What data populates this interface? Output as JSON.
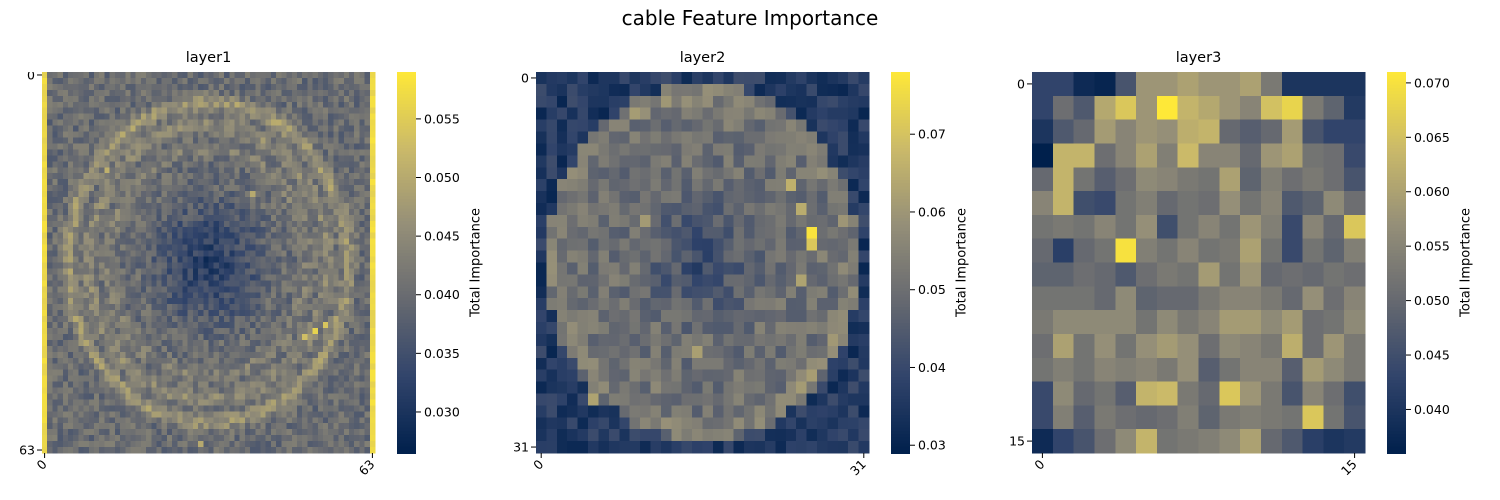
{
  "figure": {
    "title": "cable Feature Importance"
  },
  "colormap": {
    "name": "cividis",
    "stops": [
      "#00204c",
      "#31446b",
      "#666970",
      "#958f78",
      "#cbba69",
      "#fee838"
    ]
  },
  "chart_data": [
    {
      "type": "heatmap",
      "title": "layer1",
      "grid_size": 64,
      "x_ticks": [
        "0",
        "63"
      ],
      "y_ticks": [
        "0",
        "63"
      ],
      "colorbar": {
        "label": "Total Importance",
        "vmin": 0.0265,
        "vmax": 0.059,
        "ticks": [
          "0.030",
          "0.035",
          "0.040",
          "0.045",
          "0.050",
          "0.055"
        ],
        "tick_values": [
          0.03,
          0.035,
          0.04,
          0.045,
          0.05,
          0.055
        ]
      },
      "pattern": {
        "edge_columns_value": 0.057,
        "rings": [
          {
            "radius": 0.42,
            "value": 0.049
          },
          {
            "radius": 0.36,
            "value": 0.046
          },
          {
            "radius": 0.3,
            "value": 0.044
          }
        ],
        "base_value": 0.04,
        "center_value": 0.031,
        "hotspots": [
          {
            "row": 43,
            "col": 52,
            "value": 0.056
          },
          {
            "row": 42,
            "col": 54,
            "value": 0.054
          },
          {
            "row": 44,
            "col": 50,
            "value": 0.053
          },
          {
            "row": 16,
            "col": 12,
            "value": 0.051
          },
          {
            "row": 20,
            "col": 40,
            "value": 0.05
          },
          {
            "row": 62,
            "col": 30,
            "value": 0.05
          }
        ]
      }
    },
    {
      "type": "heatmap",
      "title": "layer2",
      "grid_size": 32,
      "x_ticks": [
        "0",
        "31"
      ],
      "y_ticks": [
        "0",
        "31"
      ],
      "colorbar": {
        "label": "Total Importance",
        "vmin": 0.029,
        "vmax": 0.078,
        "ticks": [
          "0.03",
          "0.04",
          "0.05",
          "0.06",
          "0.07"
        ],
        "tick_values": [
          0.03,
          0.04,
          0.05,
          0.06,
          0.07
        ]
      },
      "pattern": {
        "outer_value": 0.036,
        "rings": [
          {
            "radius": 0.44,
            "value": 0.058
          },
          {
            "radius": 0.36,
            "value": 0.052
          }
        ],
        "base_value": 0.05,
        "center_value": 0.04,
        "hotspots": [
          {
            "row": 13,
            "col": 26,
            "value": 0.077
          },
          {
            "row": 14,
            "col": 26,
            "value": 0.071
          },
          {
            "row": 9,
            "col": 24,
            "value": 0.066
          },
          {
            "row": 11,
            "col": 25,
            "value": 0.065
          },
          {
            "row": 17,
            "col": 25,
            "value": 0.063
          },
          {
            "row": 12,
            "col": 10,
            "value": 0.061
          },
          {
            "row": 23,
            "col": 15,
            "value": 0.062
          },
          {
            "row": 27,
            "col": 5,
            "value": 0.063
          }
        ]
      }
    },
    {
      "type": "heatmap",
      "title": "layer3",
      "grid_size": 16,
      "x_ticks": [
        "0",
        "15"
      ],
      "y_ticks": [
        "0",
        "15"
      ],
      "colorbar": {
        "label": "Total Importance",
        "vmin": 0.036,
        "vmax": 0.071,
        "ticks": [
          "0.040",
          "0.045",
          "0.050",
          "0.055",
          "0.060",
          "0.065",
          "0.070"
        ],
        "tick_values": [
          0.04,
          0.045,
          0.05,
          0.055,
          0.06,
          0.065,
          0.07
        ]
      },
      "values": [
        [
          0.043,
          0.043,
          0.038,
          0.037,
          0.046,
          0.058,
          0.058,
          0.06,
          0.058,
          0.058,
          0.06,
          0.053,
          0.04,
          0.04,
          0.04,
          0.04
        ],
        [
          0.043,
          0.051,
          0.047,
          0.061,
          0.066,
          0.058,
          0.071,
          0.063,
          0.061,
          0.058,
          0.055,
          0.065,
          0.068,
          0.053,
          0.049,
          0.041
        ],
        [
          0.04,
          0.047,
          0.05,
          0.059,
          0.055,
          0.058,
          0.057,
          0.062,
          0.063,
          0.05,
          0.048,
          0.05,
          0.059,
          0.046,
          0.043,
          0.043
        ],
        [
          0.036,
          0.063,
          0.063,
          0.051,
          0.055,
          0.06,
          0.054,
          0.064,
          0.055,
          0.055,
          0.05,
          0.058,
          0.06,
          0.052,
          0.051,
          0.044
        ],
        [
          0.05,
          0.063,
          0.052,
          0.048,
          0.051,
          0.056,
          0.055,
          0.053,
          0.052,
          0.06,
          0.049,
          0.054,
          0.051,
          0.053,
          0.051,
          0.046
        ],
        [
          0.055,
          0.063,
          0.045,
          0.044,
          0.052,
          0.054,
          0.05,
          0.052,
          0.051,
          0.057,
          0.052,
          0.055,
          0.047,
          0.049,
          0.056,
          0.051
        ],
        [
          0.052,
          0.053,
          0.052,
          0.055,
          0.052,
          0.057,
          0.045,
          0.052,
          0.055,
          0.052,
          0.058,
          0.054,
          0.044,
          0.055,
          0.05,
          0.066
        ],
        [
          0.05,
          0.042,
          0.05,
          0.052,
          0.07,
          0.054,
          0.052,
          0.055,
          0.052,
          0.053,
          0.06,
          0.052,
          0.044,
          0.052,
          0.049,
          0.054
        ],
        [
          0.049,
          0.049,
          0.051,
          0.05,
          0.047,
          0.051,
          0.053,
          0.052,
          0.059,
          0.052,
          0.058,
          0.05,
          0.051,
          0.05,
          0.052,
          0.051
        ],
        [
          0.052,
          0.052,
          0.052,
          0.05,
          0.056,
          0.049,
          0.05,
          0.05,
          0.053,
          0.055,
          0.055,
          0.053,
          0.05,
          0.057,
          0.051,
          0.055
        ],
        [
          0.053,
          0.056,
          0.056,
          0.056,
          0.056,
          0.052,
          0.056,
          0.053,
          0.055,
          0.059,
          0.059,
          0.056,
          0.059,
          0.051,
          0.052,
          0.056
        ],
        [
          0.051,
          0.06,
          0.052,
          0.057,
          0.052,
          0.057,
          0.059,
          0.057,
          0.051,
          0.056,
          0.055,
          0.053,
          0.062,
          0.051,
          0.058,
          0.053
        ],
        [
          0.052,
          0.054,
          0.052,
          0.055,
          0.054,
          0.055,
          0.053,
          0.057,
          0.048,
          0.052,
          0.055,
          0.055,
          0.048,
          0.059,
          0.056,
          0.053
        ],
        [
          0.044,
          0.056,
          0.05,
          0.052,
          0.048,
          0.063,
          0.064,
          0.053,
          0.05,
          0.066,
          0.058,
          0.053,
          0.046,
          0.055,
          0.051,
          0.045
        ],
        [
          0.044,
          0.054,
          0.048,
          0.053,
          0.051,
          0.05,
          0.051,
          0.054,
          0.049,
          0.053,
          0.054,
          0.053,
          0.052,
          0.066,
          0.052,
          0.046
        ],
        [
          0.038,
          0.043,
          0.046,
          0.051,
          0.056,
          0.063,
          0.052,
          0.053,
          0.054,
          0.056,
          0.06,
          0.05,
          0.047,
          0.042,
          0.04,
          0.041
        ]
      ]
    }
  ]
}
